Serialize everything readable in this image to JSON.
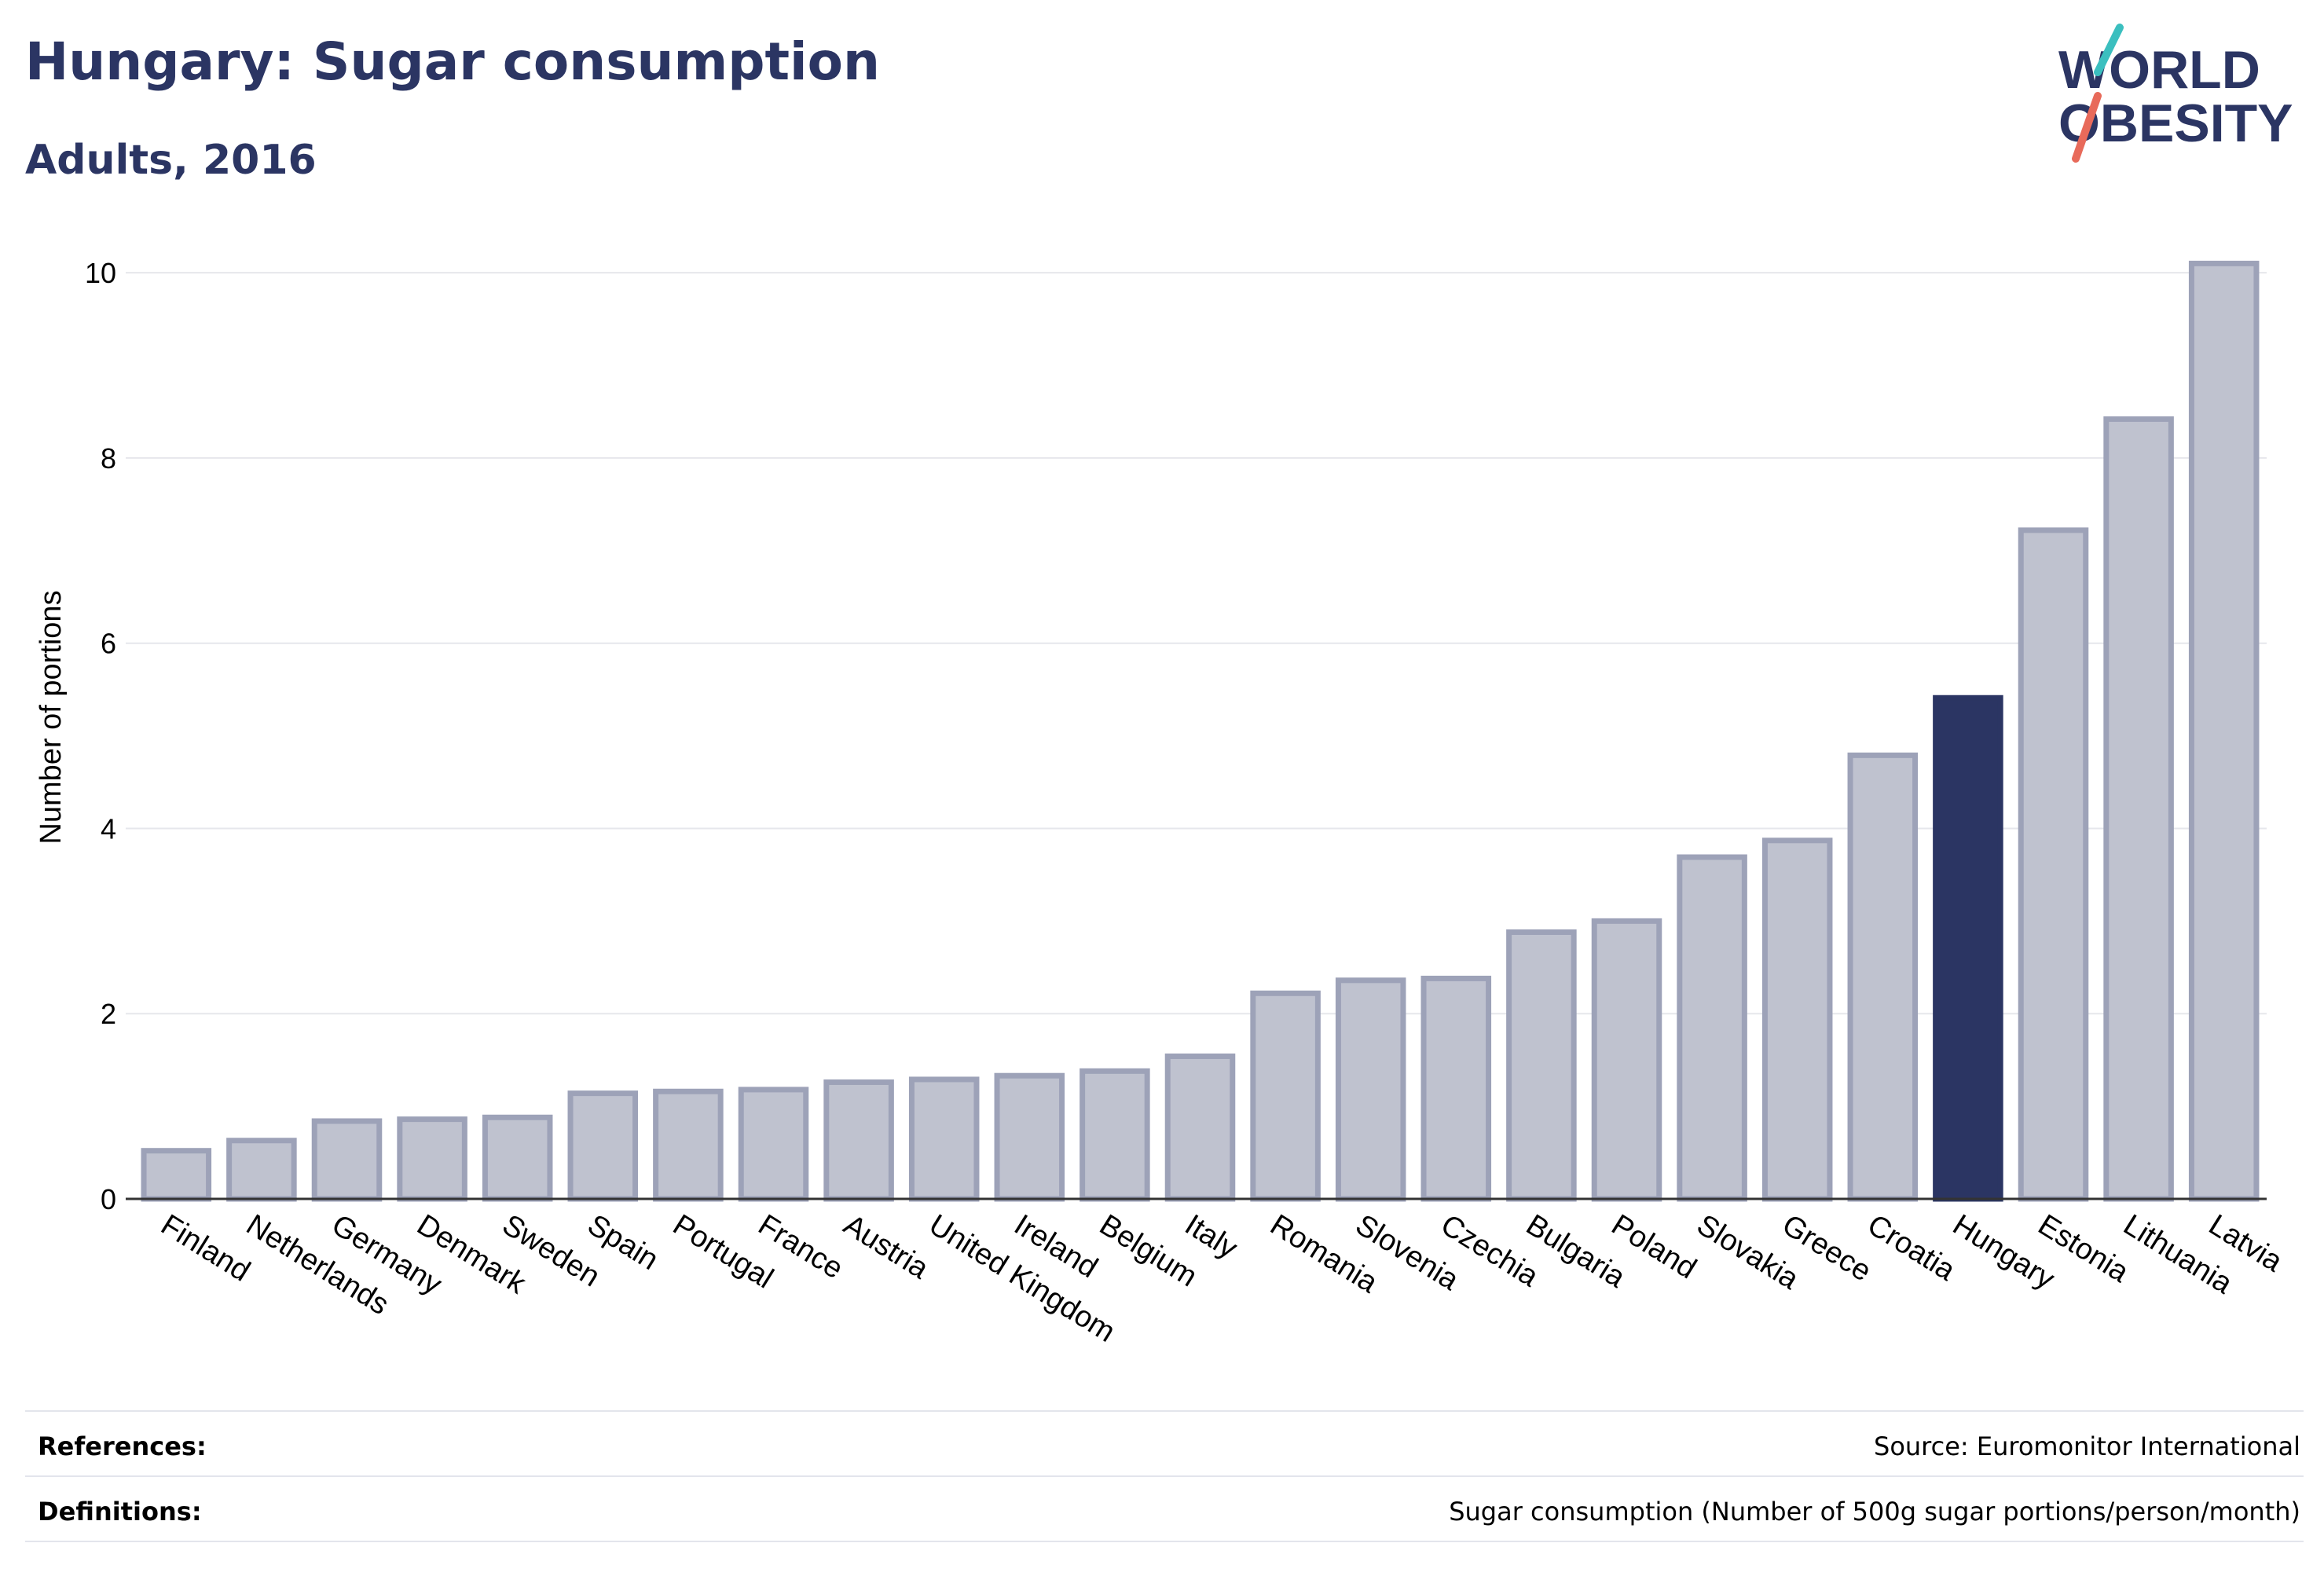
{
  "header": {
    "title": "Hungary: Sugar consumption",
    "subtitle": "Adults, 2016"
  },
  "logo": {
    "line1": "WORLD",
    "line2": "OBESITY",
    "accent_color_top": "#3bbfbf",
    "accent_color_bottom": "#e86a5a"
  },
  "chart_data": {
    "type": "bar",
    "ylabel": "Number of portions",
    "ylim": [
      0,
      10.4
    ],
    "yticks": [
      0,
      2,
      4,
      6,
      8,
      10
    ],
    "grid": true,
    "highlight": "Hungary",
    "colors": {
      "bar": "#bfc2cf",
      "bar_border": "#9da2b8",
      "highlight": "#2b3563"
    },
    "categories": [
      "Finland",
      "Netherlands",
      "Germany",
      "Denmark",
      "Sweden",
      "Spain",
      "Portugal",
      "France",
      "Austria",
      "United Kingdom",
      "Ireland",
      "Belgium",
      "Italy",
      "Romania",
      "Slovenia",
      "Czechia",
      "Bulgaria",
      "Poland",
      "Slovakia",
      "Greece",
      "Croatia",
      "Hungary",
      "Estonia",
      "Lithuania",
      "Latvia"
    ],
    "values": [
      0.52,
      0.63,
      0.84,
      0.86,
      0.88,
      1.14,
      1.16,
      1.18,
      1.26,
      1.29,
      1.33,
      1.38,
      1.54,
      2.22,
      2.36,
      2.38,
      2.88,
      3.0,
      3.69,
      3.87,
      4.79,
      5.41,
      7.22,
      8.42,
      10.1
    ]
  },
  "footer": {
    "references_label": "References:",
    "references_value": "Source: Euromonitor International",
    "definitions_label": "Definitions:",
    "definitions_value": "Sugar consumption (Number of 500g sugar portions/person/month)"
  }
}
